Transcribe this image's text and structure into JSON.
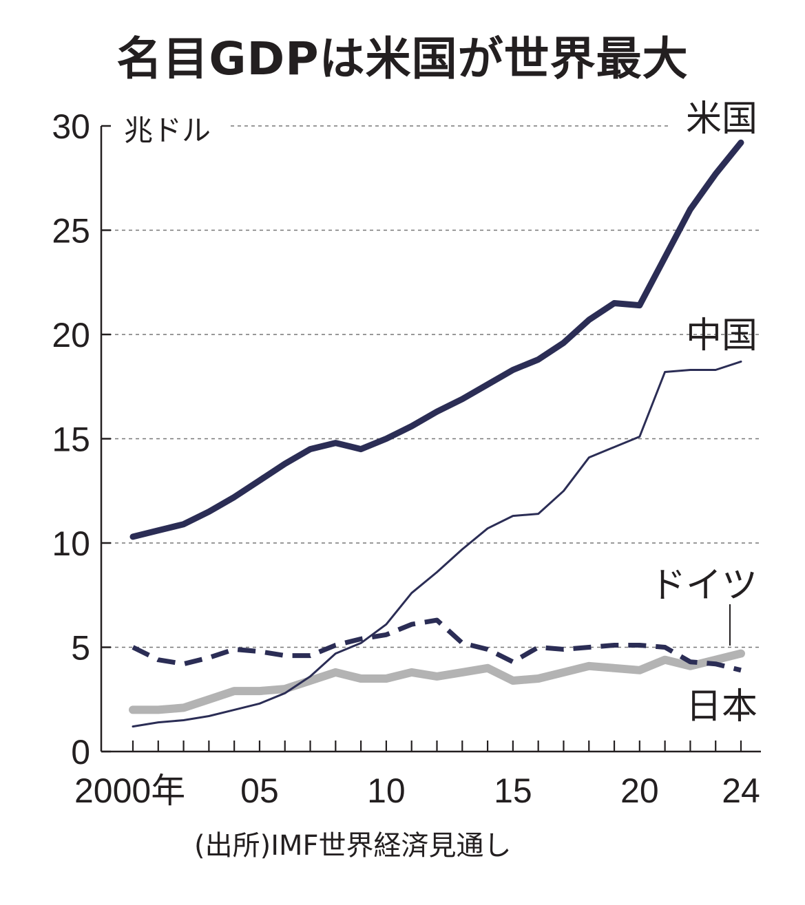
{
  "title": "名目GDPは米国が世界最大",
  "source": "(出所)IMF世界経済見通し",
  "chart_data": {
    "type": "line",
    "unit": "兆ドル",
    "x": [
      2000,
      2001,
      2002,
      2003,
      2004,
      2005,
      2006,
      2007,
      2008,
      2009,
      2010,
      2011,
      2012,
      2013,
      2014,
      2015,
      2016,
      2017,
      2018,
      2019,
      2020,
      2021,
      2022,
      2023,
      2024
    ],
    "xticks": [
      {
        "value": 2000,
        "label": "2000年"
      },
      {
        "value": 2005,
        "label": "05"
      },
      {
        "value": 2010,
        "label": "10"
      },
      {
        "value": 2015,
        "label": "15"
      },
      {
        "value": 2020,
        "label": "20"
      },
      {
        "value": 2024,
        "label": "24"
      }
    ],
    "yticks": [
      0,
      5,
      10,
      15,
      20,
      25,
      30
    ],
    "xlim": [
      2000,
      2024
    ],
    "ylim": [
      0,
      30
    ],
    "grid": "horizontal dashed",
    "series": [
      {
        "name": "米国",
        "color": "#2b2d55",
        "style": "thick",
        "values": [
          10.3,
          10.6,
          10.9,
          11.5,
          12.2,
          13.0,
          13.8,
          14.5,
          14.8,
          14.5,
          15.0,
          15.6,
          16.3,
          16.9,
          17.6,
          18.3,
          18.8,
          19.6,
          20.7,
          21.5,
          21.4,
          23.7,
          26.0,
          27.7,
          29.2
        ]
      },
      {
        "name": "中国",
        "color": "#2b2d55",
        "style": "thin",
        "values": [
          1.2,
          1.4,
          1.5,
          1.7,
          2.0,
          2.3,
          2.8,
          3.6,
          4.7,
          5.2,
          6.1,
          7.6,
          8.6,
          9.7,
          10.7,
          11.3,
          11.4,
          12.5,
          14.1,
          14.6,
          15.1,
          18.2,
          18.3,
          18.3,
          18.7
        ]
      },
      {
        "name": "ドイツ",
        "color": "#2b2d55",
        "style": "dashed",
        "values": [
          5.0,
          4.4,
          4.2,
          4.5,
          4.9,
          4.8,
          4.6,
          4.6,
          5.1,
          5.4,
          5.6,
          6.1,
          6.3,
          5.2,
          4.9,
          4.3,
          5.0,
          4.9,
          5.0,
          5.1,
          5.1,
          5.0,
          4.3,
          4.2,
          3.9
        ]
      },
      {
        "name": "日本",
        "color": "#b3b3b3",
        "style": "thick-gray",
        "values": [
          2.0,
          2.0,
          2.1,
          2.5,
          2.9,
          2.9,
          3.0,
          3.4,
          3.8,
          3.5,
          3.5,
          3.8,
          3.6,
          3.8,
          4.0,
          3.4,
          3.5,
          3.8,
          4.1,
          4.0,
          3.9,
          4.4,
          4.1,
          4.4,
          4.7
        ]
      }
    ]
  }
}
